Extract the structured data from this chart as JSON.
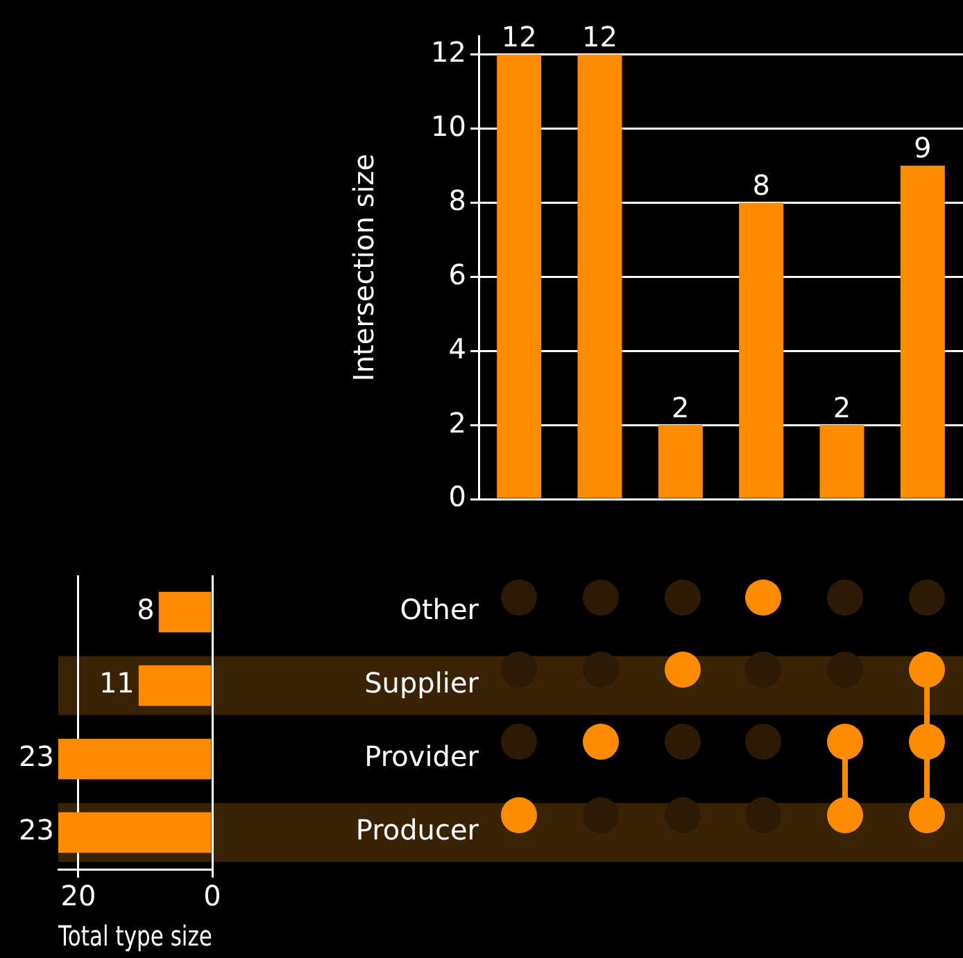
{
  "chart_data": [
    {
      "type": "bar",
      "categories": [
        null,
        null,
        null,
        null,
        null,
        null
      ],
      "values": [
        12,
        12,
        2,
        8,
        2,
        9
      ],
      "color": "#ff8c00",
      "ylabel": "Intersection size",
      "ylim": [
        0,
        12.5
      ],
      "yticks": [
        0,
        2,
        4,
        6,
        8,
        10,
        12
      ],
      "grid": "y",
      "data_labels": true
    },
    {
      "type": "bar",
      "orientation": "horizontal",
      "categories": [
        "Other",
        "Supplier",
        "Provider",
        "Producer"
      ],
      "values": [
        8,
        11,
        23,
        23
      ],
      "color": "#ff8c00",
      "xlabel": "Total type size",
      "xlim": [
        23,
        0
      ],
      "xticks": [
        0,
        20
      ],
      "grid": "x",
      "data_labels": true,
      "bands": [
        {
          "axis": "y",
          "from": "Supplier",
          "to": "Supplier",
          "color": "#3a2305"
        },
        {
          "axis": "y",
          "from": "Producer",
          "to": "Producer",
          "color": "#3a2305"
        }
      ]
    }
  ]
}
